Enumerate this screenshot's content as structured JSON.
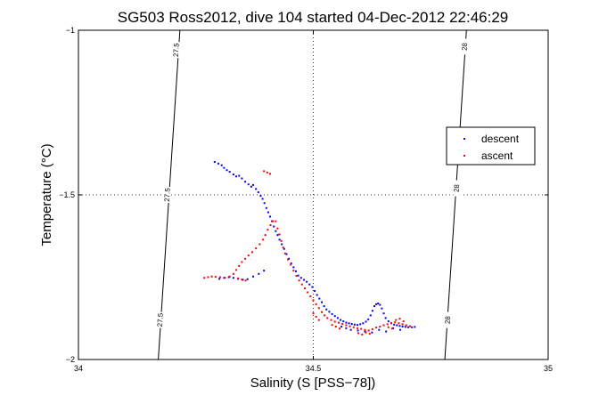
{
  "chart_data": {
    "type": "scatter",
    "title": "SG503 Ross2012, dive 104 started 04-Dec-2012 22:46:29",
    "xlabel": "Salinity (S [PSS−78])",
    "ylabel": "Temperature (°C)",
    "xlim": [
      34,
      35
    ],
    "ylim": [
      -2,
      -1
    ],
    "xticks": [
      34,
      34.5,
      35
    ],
    "yticks": [
      -2,
      -1.5,
      -1
    ],
    "xtick_labels": [
      "34",
      "34.5",
      "35"
    ],
    "ytick_labels": [
      "−2",
      "−1.5",
      "−1"
    ],
    "grid": "dotted at 34.5 and -1.5",
    "legend_position": "right",
    "density_contours": [
      {
        "label": "27.5",
        "points": [
          [
            34.216,
            -1
          ],
          [
            34.17,
            -2
          ]
        ],
        "label_positions": [
          [
            34.209,
            -1.06
          ],
          [
            34.19,
            -1.5
          ],
          [
            34.175,
            -1.88
          ]
        ]
      },
      {
        "label": "28",
        "points": [
          [
            34.826,
            -1
          ],
          [
            34.78,
            -2
          ]
        ],
        "label_positions": [
          [
            34.823,
            -1.05
          ],
          [
            34.806,
            -1.48
          ],
          [
            34.787,
            -1.88
          ]
        ]
      }
    ],
    "series": [
      {
        "name": "descent",
        "color": "#0000ff",
        "points": [
          [
            34.29,
            -1.4
          ],
          [
            34.298,
            -1.405
          ],
          [
            34.305,
            -1.41
          ],
          [
            34.31,
            -1.418
          ],
          [
            34.316,
            -1.425
          ],
          [
            34.322,
            -1.43
          ],
          [
            34.33,
            -1.438
          ],
          [
            34.336,
            -1.444
          ],
          [
            34.342,
            -1.442
          ],
          [
            34.348,
            -1.45
          ],
          [
            34.355,
            -1.46
          ],
          [
            34.362,
            -1.468
          ],
          [
            34.368,
            -1.475
          ],
          [
            34.372,
            -1.47
          ],
          [
            34.378,
            -1.482
          ],
          [
            34.383,
            -1.492
          ],
          [
            34.388,
            -1.503
          ],
          [
            34.392,
            -1.512
          ],
          [
            34.396,
            -1.525
          ],
          [
            34.4,
            -1.54
          ],
          [
            34.404,
            -1.553
          ],
          [
            34.408,
            -1.566
          ],
          [
            34.412,
            -1.58
          ],
          [
            34.416,
            -1.596
          ],
          [
            34.42,
            -1.61
          ],
          [
            34.424,
            -1.622
          ],
          [
            34.428,
            -1.636
          ],
          [
            34.433,
            -1.65
          ],
          [
            34.438,
            -1.664
          ],
          [
            34.443,
            -1.68
          ],
          [
            34.448,
            -1.694
          ],
          [
            34.453,
            -1.708
          ],
          [
            34.458,
            -1.72
          ],
          [
            34.463,
            -1.732
          ],
          [
            34.468,
            -1.745
          ],
          [
            34.474,
            -1.752
          ],
          [
            34.48,
            -1.758
          ],
          [
            34.486,
            -1.764
          ],
          [
            34.492,
            -1.772
          ],
          [
            34.498,
            -1.78
          ],
          [
            34.503,
            -1.792
          ],
          [
            34.508,
            -1.804
          ],
          [
            34.513,
            -1.815
          ],
          [
            34.518,
            -1.826
          ],
          [
            34.523,
            -1.838
          ],
          [
            34.528,
            -1.848
          ],
          [
            34.534,
            -1.855
          ],
          [
            34.54,
            -1.862
          ],
          [
            34.546,
            -1.868
          ],
          [
            34.552,
            -1.874
          ],
          [
            34.558,
            -1.88
          ],
          [
            34.564,
            -1.884
          ],
          [
            34.57,
            -1.888
          ],
          [
            34.576,
            -1.89
          ],
          [
            34.582,
            -1.892
          ],
          [
            34.588,
            -1.894
          ],
          [
            34.594,
            -1.895
          ],
          [
            34.6,
            -1.893
          ],
          [
            34.606,
            -1.89
          ],
          [
            34.612,
            -1.885
          ],
          [
            34.617,
            -1.878
          ],
          [
            34.622,
            -1.866
          ],
          [
            34.626,
            -1.852
          ],
          [
            34.63,
            -1.838
          ],
          [
            34.634,
            -1.832
          ],
          [
            34.638,
            -1.83
          ],
          [
            34.642,
            -1.834
          ],
          [
            34.646,
            -1.845
          ],
          [
            34.65,
            -1.86
          ],
          [
            34.654,
            -1.874
          ],
          [
            34.66,
            -1.884
          ],
          [
            34.666,
            -1.89
          ],
          [
            34.672,
            -1.894
          ],
          [
            34.678,
            -1.896
          ],
          [
            34.684,
            -1.898
          ],
          [
            34.69,
            -1.9
          ],
          [
            34.696,
            -1.901
          ],
          [
            34.702,
            -1.902
          ],
          [
            34.71,
            -1.902
          ],
          [
            34.716,
            -1.901
          ],
          [
            34.3,
            -1.755
          ],
          [
            34.31,
            -1.752
          ],
          [
            34.32,
            -1.75
          ],
          [
            34.33,
            -1.752
          ],
          [
            34.34,
            -1.755
          ],
          [
            34.35,
            -1.758
          ],
          [
            34.36,
            -1.756
          ],
          [
            34.372,
            -1.748
          ],
          [
            34.384,
            -1.74
          ],
          [
            34.395,
            -1.73
          ],
          [
            34.56,
            -1.9
          ],
          [
            34.57,
            -1.905
          ],
          [
            34.58,
            -1.91
          ],
          [
            34.595,
            -1.912
          ],
          [
            34.61,
            -1.915
          ],
          [
            34.625,
            -1.918
          ],
          [
            34.64,
            -1.91
          ],
          [
            34.655,
            -1.915
          ],
          [
            34.67,
            -1.905
          ],
          [
            34.685,
            -1.91
          ]
        ]
      },
      {
        "name": "ascent",
        "color": "#ff0000",
        "points": [
          [
            34.395,
            -1.428
          ],
          [
            34.402,
            -1.432
          ],
          [
            34.408,
            -1.436
          ],
          [
            34.414,
            -1.58
          ],
          [
            34.409,
            -1.592
          ],
          [
            34.403,
            -1.606
          ],
          [
            34.398,
            -1.622
          ],
          [
            34.393,
            -1.636
          ],
          [
            34.386,
            -1.65
          ],
          [
            34.378,
            -1.662
          ],
          [
            34.37,
            -1.674
          ],
          [
            34.362,
            -1.684
          ],
          [
            34.355,
            -1.694
          ],
          [
            34.348,
            -1.704
          ],
          [
            34.342,
            -1.716
          ],
          [
            34.336,
            -1.728
          ],
          [
            34.33,
            -1.74
          ],
          [
            34.322,
            -1.748
          ],
          [
            34.312,
            -1.752
          ],
          [
            34.302,
            -1.75
          ],
          [
            34.292,
            -1.749
          ],
          [
            34.284,
            -1.748
          ],
          [
            34.276,
            -1.75
          ],
          [
            34.268,
            -1.752
          ],
          [
            34.34,
            -1.754
          ],
          [
            34.348,
            -1.757
          ],
          [
            34.356,
            -1.76
          ],
          [
            34.42,
            -1.58
          ],
          [
            34.424,
            -1.602
          ],
          [
            34.428,
            -1.62
          ],
          [
            34.432,
            -1.64
          ],
          [
            34.436,
            -1.66
          ],
          [
            34.44,
            -1.678
          ],
          [
            34.446,
            -1.696
          ],
          [
            34.452,
            -1.712
          ],
          [
            34.458,
            -1.73
          ],
          [
            34.464,
            -1.746
          ],
          [
            34.47,
            -1.76
          ],
          [
            34.476,
            -1.772
          ],
          [
            34.482,
            -1.784
          ],
          [
            34.488,
            -1.796
          ],
          [
            34.494,
            -1.808
          ],
          [
            34.5,
            -1.82
          ],
          [
            34.506,
            -1.832
          ],
          [
            34.512,
            -1.844
          ],
          [
            34.518,
            -1.856
          ],
          [
            34.524,
            -1.866
          ],
          [
            34.53,
            -1.874
          ],
          [
            34.538,
            -1.88
          ],
          [
            34.546,
            -1.885
          ],
          [
            34.554,
            -1.888
          ],
          [
            34.562,
            -1.892
          ],
          [
            34.57,
            -1.896
          ],
          [
            34.578,
            -1.899
          ],
          [
            34.586,
            -1.902
          ],
          [
            34.594,
            -1.905
          ],
          [
            34.602,
            -1.907
          ],
          [
            34.61,
            -1.91
          ],
          [
            34.618,
            -1.912
          ],
          [
            34.626,
            -1.908
          ],
          [
            34.634,
            -1.903
          ],
          [
            34.642,
            -1.9
          ],
          [
            34.65,
            -1.896
          ],
          [
            34.658,
            -1.893
          ],
          [
            34.666,
            -1.889
          ],
          [
            34.674,
            -1.887
          ],
          [
            34.682,
            -1.89
          ],
          [
            34.69,
            -1.893
          ],
          [
            34.698,
            -1.896
          ],
          [
            34.706,
            -1.899
          ],
          [
            34.5,
            -1.86
          ],
          [
            34.506,
            -1.87
          ],
          [
            34.512,
            -1.88
          ],
          [
            34.54,
            -1.895
          ],
          [
            34.548,
            -1.9
          ],
          [
            34.556,
            -1.906
          ],
          [
            34.596,
            -1.92
          ],
          [
            34.604,
            -1.924
          ],
          [
            34.612,
            -1.918
          ],
          [
            34.62,
            -1.922
          ],
          [
            34.66,
            -1.902
          ],
          [
            34.668,
            -1.906
          ],
          [
            34.676,
            -1.88
          ],
          [
            34.684,
            -1.876
          ],
          [
            34.692,
            -1.884
          ]
        ]
      }
    ]
  }
}
